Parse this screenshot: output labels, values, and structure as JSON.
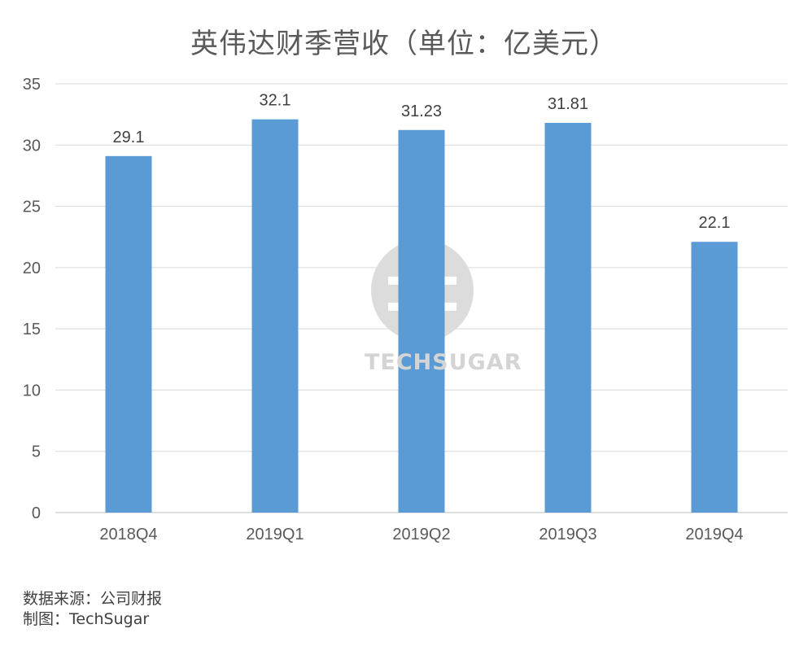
{
  "chart_data": {
    "type": "bar",
    "title": "英伟达财季营收（单位：亿美元）",
    "categories": [
      "2018Q4",
      "2019Q1",
      "2019Q2",
      "2019Q3",
      "2019Q4"
    ],
    "values": [
      29.1,
      32.1,
      31.23,
      31.81,
      22.1
    ],
    "value_labels": [
      "29.1",
      "32.1",
      "31.23",
      "31.81",
      "22.1"
    ],
    "ylim": [
      0,
      35
    ],
    "yticks": [
      0,
      5,
      10,
      15,
      20,
      25,
      30,
      35
    ],
    "grid": true,
    "bar_color": "#5b9bd5",
    "grid_color": "#d9d9d9"
  },
  "footer": {
    "source": "数据来源：公司财报",
    "author": "制图：TechSugar"
  },
  "watermark": {
    "text": "TECHSUGAR"
  }
}
